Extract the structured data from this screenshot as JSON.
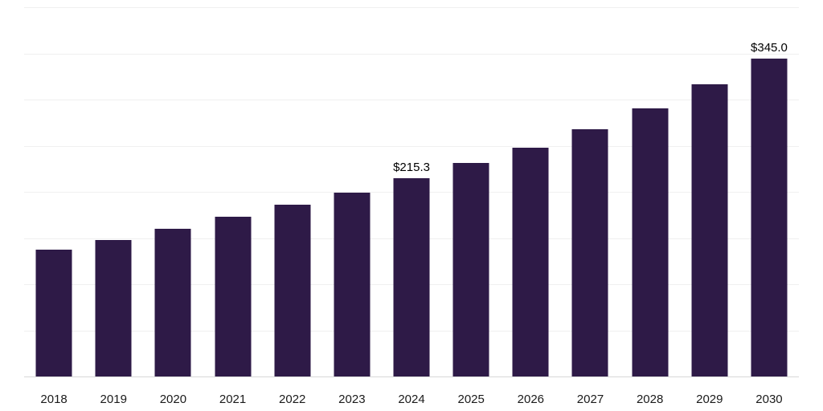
{
  "chart_data": {
    "type": "bar",
    "title": "",
    "xlabel": "",
    "ylabel": "",
    "categories": [
      "2018",
      "2019",
      "2020",
      "2021",
      "2022",
      "2023",
      "2024",
      "2025",
      "2026",
      "2027",
      "2028",
      "2029",
      "2030"
    ],
    "values": [
      138,
      149,
      161,
      174,
      187,
      200,
      215.3,
      232,
      249,
      269,
      291,
      317,
      345
    ],
    "data_labels": {
      "2024": "$215.3",
      "2030": "$345.0"
    },
    "bar_color": "#2E1A47",
    "gridline_color": "#f0f0f0",
    "axis_line_color": "#d8d8d8",
    "ylim": [
      0,
      400
    ],
    "gridline_step": 50,
    "grid": "horizontal",
    "legend": "none"
  }
}
